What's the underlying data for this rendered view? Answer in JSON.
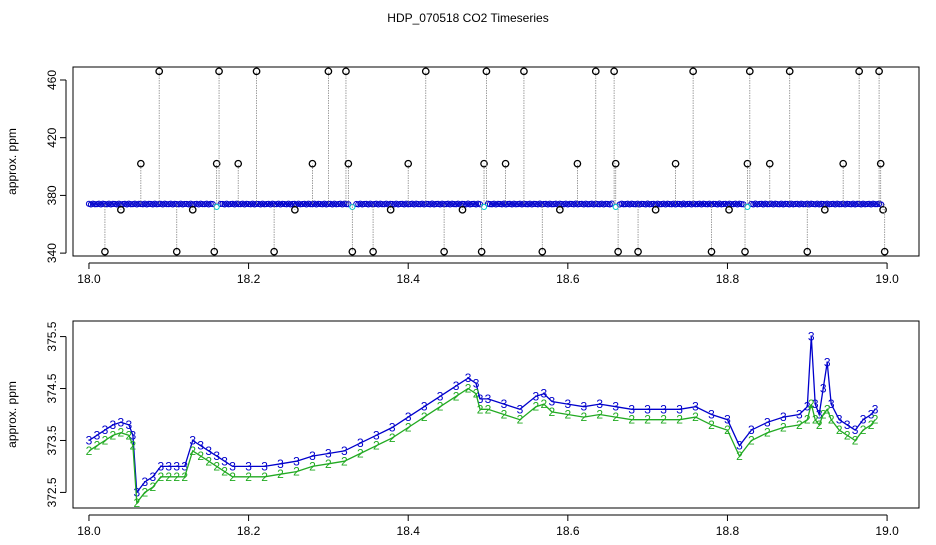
{
  "page_title": "HDP_070518  CO2 Timeseries",
  "colors": {
    "raw": "#000000",
    "series1": "#0000cc",
    "series2": "#22aa22",
    "flag": "#00cccc",
    "line": "#888888"
  },
  "chart_data": [
    {
      "type": "scatter",
      "title": "",
      "xlabel": "",
      "ylabel": "approx. ppm",
      "xlim": [
        17.98,
        19.04
      ],
      "ylim": [
        338,
        469
      ],
      "x_ticks": [
        "18.0",
        "18.2",
        "18.4",
        "18.6",
        "18.8",
        "19.0"
      ],
      "y_ticks": [
        "340",
        "380",
        "420",
        "460"
      ],
      "baseline_ppm": 374,
      "series": [
        {
          "name": "",
          "marker": "o",
          "color": "#000000",
          "points": [
            [
              18.02,
              341
            ],
            [
              18.04,
              370
            ],
            [
              18.065,
              402
            ],
            [
              18.088,
              466
            ],
            [
              18.11,
              341
            ],
            [
              18.13,
              370
            ],
            [
              18.157,
              341
            ],
            [
              18.16,
              402
            ],
            [
              18.163,
              466
            ],
            [
              18.187,
              402
            ],
            [
              18.21,
              466
            ],
            [
              18.232,
              341
            ],
            [
              18.258,
              370
            ],
            [
              18.28,
              402
            ],
            [
              18.3,
              466
            ],
            [
              18.322,
              466
            ],
            [
              18.325,
              402
            ],
            [
              18.33,
              341
            ],
            [
              18.356,
              341
            ],
            [
              18.378,
              370
            ],
            [
              18.4,
              402
            ],
            [
              18.422,
              466
            ],
            [
              18.445,
              341
            ],
            [
              18.468,
              370
            ],
            [
              18.492,
              341
            ],
            [
              18.495,
              402
            ],
            [
              18.498,
              466
            ],
            [
              18.522,
              402
            ],
            [
              18.545,
              466
            ],
            [
              18.568,
              341
            ],
            [
              18.59,
              370
            ],
            [
              18.612,
              402
            ],
            [
              18.635,
              466
            ],
            [
              18.658,
              466
            ],
            [
              18.66,
              402
            ],
            [
              18.663,
              341
            ],
            [
              18.688,
              341
            ],
            [
              18.71,
              370
            ],
            [
              18.735,
              402
            ],
            [
              18.757,
              466
            ],
            [
              18.78,
              341
            ],
            [
              18.802,
              370
            ],
            [
              18.822,
              341
            ],
            [
              18.825,
              402
            ],
            [
              18.828,
              466
            ],
            [
              18.853,
              402
            ],
            [
              18.878,
              466
            ],
            [
              18.9,
              341
            ],
            [
              18.922,
              370
            ],
            [
              18.945,
              402
            ],
            [
              18.965,
              466
            ],
            [
              18.99,
              466
            ],
            [
              18.992,
              402
            ],
            [
              18.995,
              370
            ],
            [
              18.997,
              341
            ]
          ]
        }
      ]
    },
    {
      "type": "line",
      "title": "",
      "xlabel": "",
      "ylabel": "approx. ppm",
      "xlim": [
        17.98,
        19.04
      ],
      "ylim": [
        372.2,
        375.8
      ],
      "x_ticks": [
        "18.0",
        "18.2",
        "18.4",
        "18.6",
        "18.8",
        "19.0"
      ],
      "y_ticks": [
        "372.5",
        "373.5",
        "374.5",
        "375.5"
      ],
      "series": [
        {
          "name": "",
          "marker": "3",
          "color": "#0000cc",
          "points": [
            [
              18.0,
              373.5
            ],
            [
              18.01,
              373.6
            ],
            [
              18.02,
              373.7
            ],
            [
              18.03,
              373.8
            ],
            [
              18.04,
              373.85
            ],
            [
              18.05,
              373.8
            ],
            [
              18.055,
              373.6
            ],
            [
              18.06,
              372.5
            ],
            [
              18.07,
              372.7
            ],
            [
              18.08,
              372.8
            ],
            [
              18.09,
              373.0
            ],
            [
              18.1,
              373.0
            ],
            [
              18.11,
              373.0
            ],
            [
              18.12,
              373.0
            ],
            [
              18.13,
              373.5
            ],
            [
              18.14,
              373.4
            ],
            [
              18.15,
              373.3
            ],
            [
              18.16,
              373.2
            ],
            [
              18.17,
              373.1
            ],
            [
              18.18,
              373.0
            ],
            [
              18.2,
              373.0
            ],
            [
              18.22,
              373.0
            ],
            [
              18.24,
              373.05
            ],
            [
              18.26,
              373.1
            ],
            [
              18.28,
              373.2
            ],
            [
              18.3,
              373.25
            ],
            [
              18.32,
              373.3
            ],
            [
              18.34,
              373.45
            ],
            [
              18.36,
              373.6
            ],
            [
              18.38,
              373.75
            ],
            [
              18.4,
              373.95
            ],
            [
              18.42,
              374.15
            ],
            [
              18.44,
              374.35
            ],
            [
              18.46,
              374.55
            ],
            [
              18.475,
              374.7
            ],
            [
              18.485,
              374.6
            ],
            [
              18.49,
              374.3
            ],
            [
              18.5,
              374.3
            ],
            [
              18.52,
              374.2
            ],
            [
              18.54,
              374.1
            ],
            [
              18.56,
              374.35
            ],
            [
              18.57,
              374.4
            ],
            [
              18.58,
              374.25
            ],
            [
              18.6,
              374.2
            ],
            [
              18.62,
              374.15
            ],
            [
              18.64,
              374.2
            ],
            [
              18.66,
              374.15
            ],
            [
              18.68,
              374.1
            ],
            [
              18.7,
              374.1
            ],
            [
              18.72,
              374.1
            ],
            [
              18.74,
              374.1
            ],
            [
              18.76,
              374.15
            ],
            [
              18.78,
              374.0
            ],
            [
              18.8,
              373.9
            ],
            [
              18.815,
              373.4
            ],
            [
              18.83,
              373.7
            ],
            [
              18.85,
              373.85
            ],
            [
              18.87,
              373.95
            ],
            [
              18.89,
              374.0
            ],
            [
              18.9,
              374.15
            ],
            [
              18.905,
              375.5
            ],
            [
              18.91,
              374.2
            ],
            [
              18.915,
              374.0
            ],
            [
              18.92,
              374.5
            ],
            [
              18.925,
              375.0
            ],
            [
              18.93,
              374.2
            ],
            [
              18.94,
              373.9
            ],
            [
              18.95,
              373.8
            ],
            [
              18.96,
              373.7
            ],
            [
              18.97,
              373.9
            ],
            [
              18.98,
              374.0
            ],
            [
              18.985,
              374.1
            ]
          ]
        },
        {
          "name": "",
          "marker": "2",
          "color": "#22aa22",
          "points": [
            [
              18.0,
              373.3
            ],
            [
              18.01,
              373.4
            ],
            [
              18.02,
              373.5
            ],
            [
              18.03,
              373.6
            ],
            [
              18.04,
              373.65
            ],
            [
              18.05,
              373.6
            ],
            [
              18.055,
              373.4
            ],
            [
              18.06,
              372.3
            ],
            [
              18.07,
              372.5
            ],
            [
              18.08,
              372.6
            ],
            [
              18.09,
              372.8
            ],
            [
              18.1,
              372.8
            ],
            [
              18.11,
              372.8
            ],
            [
              18.12,
              372.8
            ],
            [
              18.13,
              373.3
            ],
            [
              18.14,
              373.2
            ],
            [
              18.15,
              373.1
            ],
            [
              18.16,
              373.0
            ],
            [
              18.17,
              372.9
            ],
            [
              18.18,
              372.8
            ],
            [
              18.2,
              372.8
            ],
            [
              18.22,
              372.8
            ],
            [
              18.24,
              372.85
            ],
            [
              18.26,
              372.9
            ],
            [
              18.28,
              373.0
            ],
            [
              18.3,
              373.05
            ],
            [
              18.32,
              373.1
            ],
            [
              18.34,
              373.25
            ],
            [
              18.36,
              373.4
            ],
            [
              18.38,
              373.55
            ],
            [
              18.4,
              373.75
            ],
            [
              18.42,
              373.95
            ],
            [
              18.44,
              374.15
            ],
            [
              18.46,
              374.35
            ],
            [
              18.475,
              374.5
            ],
            [
              18.485,
              374.4
            ],
            [
              18.49,
              374.1
            ],
            [
              18.5,
              374.1
            ],
            [
              18.52,
              374.0
            ],
            [
              18.54,
              373.9
            ],
            [
              18.56,
              374.15
            ],
            [
              18.57,
              374.2
            ],
            [
              18.58,
              374.05
            ],
            [
              18.6,
              374.0
            ],
            [
              18.62,
              373.95
            ],
            [
              18.64,
              374.0
            ],
            [
              18.66,
              373.95
            ],
            [
              18.68,
              373.9
            ],
            [
              18.7,
              373.9
            ],
            [
              18.72,
              373.9
            ],
            [
              18.74,
              373.9
            ],
            [
              18.76,
              373.95
            ],
            [
              18.78,
              373.8
            ],
            [
              18.8,
              373.7
            ],
            [
              18.815,
              373.2
            ],
            [
              18.83,
              373.5
            ],
            [
              18.85,
              373.65
            ],
            [
              18.87,
              373.75
            ],
            [
              18.89,
              373.8
            ],
            [
              18.9,
              373.9
            ],
            [
              18.905,
              374.2
            ],
            [
              18.91,
              373.9
            ],
            [
              18.915,
              373.8
            ],
            [
              18.92,
              374.0
            ],
            [
              18.925,
              374.1
            ],
            [
              18.93,
              373.9
            ],
            [
              18.94,
              373.7
            ],
            [
              18.95,
              373.6
            ],
            [
              18.96,
              373.5
            ],
            [
              18.97,
              373.7
            ],
            [
              18.98,
              373.8
            ],
            [
              18.985,
              373.9
            ]
          ]
        }
      ]
    }
  ]
}
